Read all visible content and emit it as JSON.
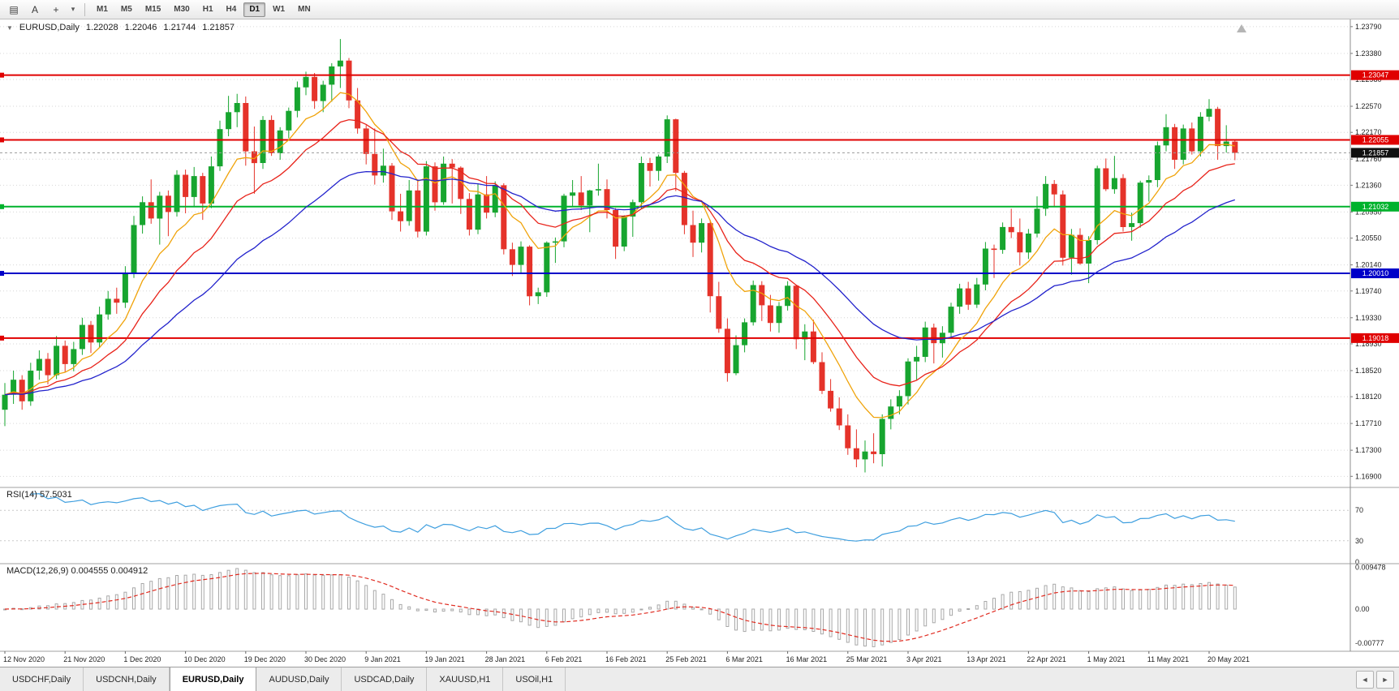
{
  "toolbar": {
    "tool_icons": [
      {
        "name": "chart-window-icon",
        "glyph": "▤"
      },
      {
        "name": "text-label-icon",
        "glyph": "A"
      },
      {
        "name": "cursor-tool-icon",
        "glyph": "+"
      },
      {
        "name": "dropdown-caret-icon",
        "glyph": "▾"
      }
    ],
    "timeframes": [
      "M1",
      "M5",
      "M15",
      "M30",
      "H1",
      "H4",
      "D1",
      "W1",
      "MN"
    ],
    "active_timeframe": "D1"
  },
  "chart_data": {
    "type": "candlestick",
    "header": {
      "collapse_icon": "▼",
      "symbol_period": "EURUSD,Daily",
      "open": "1.22028",
      "high": "1.22046",
      "low": "1.21744",
      "close": "1.21857"
    },
    "colors": {
      "up": "#17a52f",
      "down": "#e5332a",
      "grid": "#d6d6d6",
      "separator": "#a0a0a0",
      "axis_line": "#8c8c8c",
      "bid_line": "#9a9a9a"
    },
    "price_axis": {
      "min": 1.1673,
      "max": 1.239,
      "ticks": [
        "1.23790",
        "1.23380",
        "1.22980",
        "1.22570",
        "1.22170",
        "1.21760",
        "1.21360",
        "1.20950",
        "1.20550",
        "1.20140",
        "1.19740",
        "1.19330",
        "1.18930",
        "1.18520",
        "1.18120",
        "1.17710",
        "1.17300",
        "1.16900"
      ]
    },
    "label_every": 7,
    "x_labels": [
      "12 Nov 2020",
      "21 Nov 2020",
      "1 Dec 2020",
      "10 Dec 2020",
      "19 Dec 2020",
      "30 Dec 2020",
      "9 Jan 2021",
      "19 Jan 2021",
      "28 Jan 2021",
      "6 Feb 2021",
      "16 Feb 2021",
      "25 Feb 2021",
      "6 Mar 2021",
      "16 Mar 2021",
      "25 Mar 2021",
      "3 Apr 2021",
      "13 Apr 2021",
      "22 Apr 2021",
      "1 May 2021",
      "11 May 2021",
      "20 May 2021"
    ],
    "hlines": [
      {
        "price": 1.23047,
        "label": "1.23047",
        "color": "#e00000"
      },
      {
        "price": 1.22055,
        "label": "1.22055",
        "color": "#e00000"
      },
      {
        "price": 1.21032,
        "label": "1.21032",
        "color": "#00b22c"
      },
      {
        "price": 1.2001,
        "label": "1.20010",
        "color": "#0000c8"
      },
      {
        "price": 1.19018,
        "label": "1.19018",
        "color": "#e00000"
      }
    ],
    "bid": {
      "price": 1.21857,
      "label": "1.21857",
      "box_color": "#111111"
    },
    "ma_lines": [
      {
        "name": "fast-ma",
        "period": 9,
        "color": "#f0a30a"
      },
      {
        "name": "mid-ma",
        "period": 17,
        "color": "#e8231a"
      },
      {
        "name": "slow-ma",
        "period": 34,
        "color": "#2222cc"
      }
    ],
    "rsi": {
      "label": "RSI(14) 57.5031",
      "period": 14,
      "value": 57.5031,
      "color": "#3f9fdf",
      "range": [
        0,
        100
      ],
      "levels": [
        70,
        30
      ],
      "axis_labels": [
        {
          "text": "70",
          "value": 70
        },
        {
          "text": "30",
          "value": 30
        },
        {
          "text": "0",
          "value": 0
        }
      ]
    },
    "macd": {
      "label": "MACD(12,26,9) 0.004555 0.004912",
      "fast": 12,
      "slow": 26,
      "signal_period": 9,
      "macd_value": 0.004555,
      "signal_value": 0.004912,
      "histogram_color": "#a8a8a8",
      "signal_color": "#e02b20",
      "axis_labels": [
        {
          "text": "0.009478",
          "value": 0.009478
        },
        {
          "text": "0.00",
          "value": 0
        },
        {
          "text": "-0.00777",
          "value": -0.00777
        }
      ]
    },
    "candles": [
      [
        1.1792,
        1.1833,
        1.1767,
        1.1815
      ],
      [
        1.1815,
        1.1852,
        1.1801,
        1.1838
      ],
      [
        1.1838,
        1.1845,
        1.1792,
        1.1805
      ],
      [
        1.1805,
        1.1864,
        1.1798,
        1.1852
      ],
      [
        1.1852,
        1.1883,
        1.1838,
        1.187
      ],
      [
        1.187,
        1.1879,
        1.1831,
        1.1845
      ],
      [
        1.1845,
        1.1905,
        1.1839,
        1.189
      ],
      [
        1.189,
        1.1898,
        1.185,
        1.1862
      ],
      [
        1.1862,
        1.1896,
        1.1851,
        1.1885
      ],
      [
        1.1885,
        1.1933,
        1.1876,
        1.1922
      ],
      [
        1.1922,
        1.1928,
        1.1879,
        1.1895
      ],
      [
        1.1895,
        1.195,
        1.1888,
        1.1938
      ],
      [
        1.1938,
        1.1974,
        1.193,
        1.1962
      ],
      [
        1.1962,
        1.1979,
        1.1939,
        1.1956
      ],
      [
        1.1956,
        1.2012,
        1.1948,
        1.2002
      ],
      [
        1.2002,
        1.2089,
        1.1994,
        1.2075
      ],
      [
        1.2075,
        1.2119,
        1.2062,
        1.211
      ],
      [
        1.211,
        1.2145,
        1.2077,
        1.2085
      ],
      [
        1.2085,
        1.2126,
        1.2045,
        1.212
      ],
      [
        1.212,
        1.2128,
        1.2058,
        1.2095
      ],
      [
        1.2095,
        1.2159,
        1.2088,
        1.2152
      ],
      [
        1.2152,
        1.216,
        1.2093,
        1.2118
      ],
      [
        1.2118,
        1.2164,
        1.2104,
        1.215
      ],
      [
        1.215,
        1.2155,
        1.2083,
        1.2108
      ],
      [
        1.2108,
        1.218,
        1.2101,
        1.2165
      ],
      [
        1.2165,
        1.2235,
        1.2158,
        1.2222
      ],
      [
        1.2222,
        1.2273,
        1.2211,
        1.2248
      ],
      [
        1.2248,
        1.2276,
        1.2225,
        1.2262
      ],
      [
        1.2262,
        1.2272,
        1.2166,
        1.2188
      ],
      [
        1.2188,
        1.2226,
        1.2123,
        1.217
      ],
      [
        1.217,
        1.2242,
        1.2161,
        1.2236
      ],
      [
        1.2236,
        1.2243,
        1.2181,
        1.2185
      ],
      [
        1.2185,
        1.2225,
        1.2175,
        1.222
      ],
      [
        1.222,
        1.2255,
        1.2208,
        1.225
      ],
      [
        1.225,
        1.2295,
        1.224,
        1.2286
      ],
      [
        1.2286,
        1.231,
        1.2274,
        1.2302
      ],
      [
        1.2302,
        1.2308,
        1.2253,
        1.2265
      ],
      [
        1.2265,
        1.2296,
        1.2248,
        1.229
      ],
      [
        1.229,
        1.2323,
        1.2264,
        1.2318
      ],
      [
        1.2318,
        1.236,
        1.2285,
        1.2327
      ],
      [
        1.2327,
        1.2331,
        1.2254,
        1.2266
      ],
      [
        1.2266,
        1.2285,
        1.2215,
        1.2223
      ],
      [
        1.2223,
        1.2228,
        1.2168,
        1.2184
      ],
      [
        1.2184,
        1.2223,
        1.2137,
        1.2151
      ],
      [
        1.2151,
        1.2192,
        1.214,
        1.2166
      ],
      [
        1.2166,
        1.217,
        1.2083,
        1.2096
      ],
      [
        1.2096,
        1.2123,
        1.2065,
        1.2081
      ],
      [
        1.2081,
        1.2144,
        1.2074,
        1.2128
      ],
      [
        1.2128,
        1.2145,
        1.2056,
        1.2065
      ],
      [
        1.2065,
        1.2173,
        1.2059,
        1.2165
      ],
      [
        1.2165,
        1.2171,
        1.2097,
        1.211
      ],
      [
        1.211,
        1.218,
        1.2106,
        1.2169
      ],
      [
        1.2169,
        1.2176,
        1.2108,
        1.2163
      ],
      [
        1.2163,
        1.2165,
        1.2092,
        1.2115
      ],
      [
        1.2115,
        1.2124,
        1.2059,
        1.2068
      ],
      [
        1.2068,
        1.2139,
        1.2061,
        1.2122
      ],
      [
        1.2122,
        1.215,
        1.2085,
        1.2094
      ],
      [
        1.2094,
        1.2142,
        1.2087,
        1.2136
      ],
      [
        1.2136,
        1.2139,
        1.203,
        1.2038
      ],
      [
        1.2038,
        1.2048,
        1.1997,
        1.2014
      ],
      [
        1.2014,
        1.205,
        1.2001,
        1.2042
      ],
      [
        1.2042,
        1.2044,
        1.1952,
        1.1966
      ],
      [
        1.1966,
        1.1979,
        1.1954,
        1.1972
      ],
      [
        1.1972,
        1.205,
        1.1965,
        1.2048
      ],
      [
        1.2048,
        1.2056,
        1.2017,
        1.205
      ],
      [
        1.205,
        1.2123,
        1.2041,
        1.212
      ],
      [
        1.212,
        1.2144,
        1.2104,
        1.2125
      ],
      [
        1.2125,
        1.215,
        1.2098,
        1.2105
      ],
      [
        1.2105,
        1.2129,
        1.2064,
        1.2128
      ],
      [
        1.2128,
        1.2169,
        1.212,
        1.213
      ],
      [
        1.213,
        1.2145,
        1.2085,
        1.2098
      ],
      [
        1.2098,
        1.2101,
        1.2023,
        1.2042
      ],
      [
        1.2042,
        1.209,
        1.2035,
        1.2088
      ],
      [
        1.2088,
        1.2114,
        1.2057,
        1.211
      ],
      [
        1.211,
        1.218,
        1.21,
        1.217
      ],
      [
        1.217,
        1.2178,
        1.2134,
        1.2158
      ],
      [
        1.2158,
        1.2183,
        1.2143,
        1.218
      ],
      [
        1.218,
        1.2243,
        1.217,
        1.2237
      ],
      [
        1.2237,
        1.2238,
        1.2127,
        1.2155
      ],
      [
        1.2155,
        1.2158,
        1.2061,
        1.2075
      ],
      [
        1.2075,
        1.2097,
        1.2026,
        1.2048
      ],
      [
        1.2048,
        1.2085,
        1.2033,
        1.2078
      ],
      [
        1.2078,
        1.2083,
        1.1941,
        1.1966
      ],
      [
        1.1966,
        1.1988,
        1.191,
        1.1916
      ],
      [
        1.1916,
        1.1932,
        1.1835,
        1.1848
      ],
      [
        1.1848,
        1.1906,
        1.1845,
        1.1891
      ],
      [
        1.1891,
        1.1932,
        1.188,
        1.1926
      ],
      [
        1.1926,
        1.199,
        1.1921,
        1.1983
      ],
      [
        1.1983,
        1.1989,
        1.1928,
        1.1952
      ],
      [
        1.1952,
        1.1968,
        1.1912,
        1.1925
      ],
      [
        1.1925,
        1.1957,
        1.191,
        1.1951
      ],
      [
        1.1951,
        1.1989,
        1.1944,
        1.1982
      ],
      [
        1.1982,
        1.1983,
        1.1885,
        1.19
      ],
      [
        1.19,
        1.1923,
        1.1868,
        1.1912
      ],
      [
        1.1912,
        1.193,
        1.1862,
        1.1865
      ],
      [
        1.1865,
        1.188,
        1.1816,
        1.1821
      ],
      [
        1.1821,
        1.1839,
        1.1789,
        1.1794
      ],
      [
        1.1794,
        1.1811,
        1.1761,
        1.1768
      ],
      [
        1.1768,
        1.1785,
        1.1723,
        1.1733
      ],
      [
        1.1733,
        1.1762,
        1.1704,
        1.1716
      ],
      [
        1.1716,
        1.1745,
        1.1696,
        1.1728
      ],
      [
        1.1728,
        1.1756,
        1.171,
        1.1724
      ],
      [
        1.1724,
        1.1785,
        1.1705,
        1.1778
      ],
      [
        1.1778,
        1.1808,
        1.1762,
        1.1797
      ],
      [
        1.1797,
        1.1822,
        1.1785,
        1.1813
      ],
      [
        1.1813,
        1.1871,
        1.18,
        1.1866
      ],
      [
        1.1866,
        1.189,
        1.1838,
        1.1873
      ],
      [
        1.1873,
        1.1927,
        1.1865,
        1.1918
      ],
      [
        1.1918,
        1.1924,
        1.1863,
        1.1894
      ],
      [
        1.1894,
        1.192,
        1.1872,
        1.191
      ],
      [
        1.191,
        1.1956,
        1.1903,
        1.195
      ],
      [
        1.195,
        1.1985,
        1.1939,
        1.1978
      ],
      [
        1.1978,
        1.1988,
        1.1945,
        1.1953
      ],
      [
        1.1953,
        1.1994,
        1.1948,
        1.1984
      ],
      [
        1.1984,
        1.2049,
        1.1975,
        1.2039
      ],
      [
        1.2039,
        1.2045,
        1.1994,
        1.2037
      ],
      [
        1.2037,
        1.2079,
        1.2031,
        1.2072
      ],
      [
        1.2072,
        1.21,
        1.2055,
        1.2064
      ],
      [
        1.2064,
        1.2085,
        1.2013,
        1.2033
      ],
      [
        1.2033,
        1.2069,
        1.2023,
        1.2062
      ],
      [
        1.2062,
        1.2119,
        1.2056,
        1.21
      ],
      [
        1.21,
        1.215,
        1.2089,
        1.2138
      ],
      [
        1.2138,
        1.2144,
        1.2104,
        1.2122
      ],
      [
        1.2122,
        1.2128,
        1.2013,
        1.2025
      ],
      [
        1.2025,
        1.2069,
        1.1999,
        1.206
      ],
      [
        1.206,
        1.207,
        1.2014,
        1.2016
      ],
      [
        1.2016,
        1.2058,
        1.1986,
        1.2052
      ],
      [
        1.2052,
        1.2166,
        1.2045,
        1.2162
      ],
      [
        1.2162,
        1.2177,
        1.2127,
        1.213
      ],
      [
        1.213,
        1.2181,
        1.2123,
        1.2147
      ],
      [
        1.2147,
        1.2153,
        1.2065,
        1.2072
      ],
      [
        1.2072,
        1.2094,
        1.2051,
        1.2078
      ],
      [
        1.2078,
        1.2143,
        1.2071,
        1.214
      ],
      [
        1.214,
        1.2151,
        1.2111,
        1.2144
      ],
      [
        1.2144,
        1.2203,
        1.2133,
        1.2197
      ],
      [
        1.2197,
        1.2245,
        1.2188,
        1.2225
      ],
      [
        1.2225,
        1.223,
        1.2161,
        1.2175
      ],
      [
        1.2175,
        1.2229,
        1.2168,
        1.2223
      ],
      [
        1.2223,
        1.2232,
        1.2183,
        1.2188
      ],
      [
        1.2188,
        1.2248,
        1.218,
        1.2241
      ],
      [
        1.2241,
        1.2268,
        1.2234,
        1.2253
      ],
      [
        1.2253,
        1.2256,
        1.2175,
        1.2196
      ],
      [
        1.2196,
        1.2228,
        1.2186,
        1.2203
      ],
      [
        1.22028,
        1.22046,
        1.21744,
        1.21857
      ]
    ]
  },
  "tab_bar": {
    "tabs": [
      {
        "label": "USDCHF,Daily",
        "active": false
      },
      {
        "label": "USDCNH,Daily",
        "active": false
      },
      {
        "label": "EURUSD,Daily",
        "active": true
      },
      {
        "label": "AUDUSD,Daily",
        "active": false
      },
      {
        "label": "USDCAD,Daily",
        "active": false
      },
      {
        "label": "XAUUSD,H1",
        "active": false
      },
      {
        "label": "USOil,H1",
        "active": false
      }
    ],
    "scroll_left_icon": "◄",
    "scroll_right_icon": "►"
  }
}
